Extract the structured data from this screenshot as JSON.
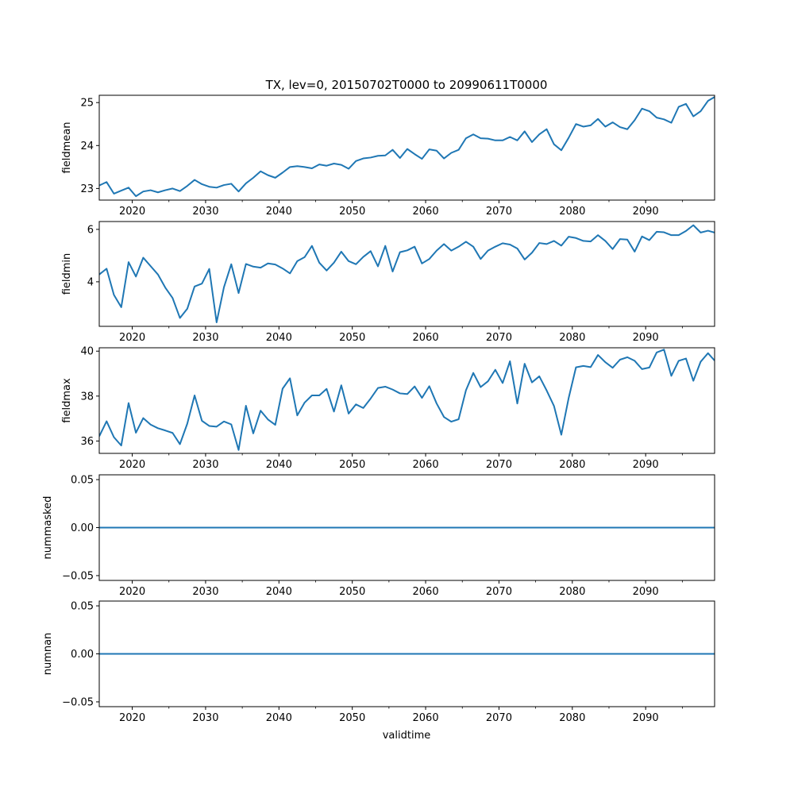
{
  "chart_data": {
    "type": "line",
    "title": "TX, lev=0, 20150702T0000 to 20990611T0000",
    "xlabel": "validtime",
    "color": "#1f77b4",
    "x_ticks": [
      "2020",
      "2030",
      "2040",
      "2050",
      "2060",
      "2070",
      "2080",
      "2090"
    ],
    "x_tick_years": [
      2020,
      2030,
      2040,
      2050,
      2060,
      2070,
      2080,
      2090
    ],
    "x_minor_years": [
      2025,
      2035,
      2045,
      2055,
      2065,
      2075,
      2085,
      2095
    ],
    "xlim": [
      2015.5,
      2099.4
    ],
    "years": [
      2015.5,
      2016.5,
      2017.5,
      2018.5,
      2019.5,
      2020.5,
      2021.5,
      2022.5,
      2023.5,
      2024.5,
      2025.5,
      2026.5,
      2027.5,
      2028.5,
      2029.5,
      2030.5,
      2031.5,
      2032.5,
      2033.5,
      2034.5,
      2035.5,
      2036.5,
      2037.5,
      2038.5,
      2039.5,
      2040.5,
      2041.5,
      2042.5,
      2043.5,
      2044.5,
      2045.5,
      2046.5,
      2047.5,
      2048.5,
      2049.5,
      2050.5,
      2051.5,
      2052.5,
      2053.5,
      2054.5,
      2055.5,
      2056.5,
      2057.5,
      2058.5,
      2059.5,
      2060.5,
      2061.5,
      2062.5,
      2063.5,
      2064.5,
      2065.5,
      2066.5,
      2067.5,
      2068.5,
      2069.5,
      2070.5,
      2071.5,
      2072.5,
      2073.5,
      2074.5,
      2075.5,
      2076.5,
      2077.5,
      2078.5,
      2079.5,
      2080.5,
      2081.5,
      2082.5,
      2083.5,
      2084.5,
      2085.5,
      2086.5,
      2087.5,
      2088.5,
      2089.5,
      2090.5,
      2091.5,
      2092.5,
      2093.5,
      2094.5,
      2095.5,
      2096.5,
      2097.5,
      2098.5,
      2099.4
    ],
    "panels": [
      {
        "ylabel": "fieldmean",
        "ylim": [
          22.73,
          25.17
        ],
        "y_ticks": [
          23,
          24,
          25
        ],
        "y_tick_labels": [
          "23",
          "24",
          "25"
        ],
        "values": [
          23.07,
          23.15,
          22.88,
          22.95,
          23.02,
          22.82,
          22.93,
          22.96,
          22.91,
          22.96,
          23.0,
          22.94,
          23.06,
          23.2,
          23.1,
          23.04,
          23.02,
          23.08,
          23.11,
          22.93,
          23.12,
          23.25,
          23.4,
          23.31,
          23.25,
          23.37,
          23.5,
          23.52,
          23.5,
          23.47,
          23.56,
          23.53,
          23.58,
          23.55,
          23.46,
          23.64,
          23.7,
          23.72,
          23.76,
          23.77,
          23.9,
          23.71,
          23.92,
          23.8,
          23.69,
          23.91,
          23.88,
          23.7,
          23.83,
          23.9,
          24.17,
          24.26,
          24.17,
          24.16,
          24.12,
          24.12,
          24.2,
          24.12,
          24.33,
          24.08,
          24.26,
          24.38,
          24.03,
          23.89,
          24.18,
          24.5,
          24.44,
          24.47,
          24.62,
          24.44,
          24.54,
          24.43,
          24.38,
          24.59,
          24.86,
          24.8,
          24.65,
          24.61,
          24.53,
          24.9,
          24.97,
          24.68,
          24.8,
          25.04,
          25.13
        ]
      },
      {
        "ylabel": "fieldmin",
        "ylim": [
          2.3,
          6.3
        ],
        "y_ticks": [
          4,
          6
        ],
        "y_tick_labels": [
          "4",
          "6"
        ],
        "values": [
          4.28,
          4.5,
          3.5,
          3.03,
          4.75,
          4.2,
          4.92,
          4.6,
          4.28,
          3.78,
          3.38,
          2.62,
          2.97,
          3.82,
          3.93,
          4.49,
          2.45,
          3.79,
          4.67,
          3.57,
          4.68,
          4.58,
          4.54,
          4.7,
          4.66,
          4.51,
          4.32,
          4.79,
          4.94,
          5.37,
          4.73,
          4.43,
          4.73,
          5.15,
          4.79,
          4.67,
          4.95,
          5.17,
          4.59,
          5.37,
          4.39,
          5.13,
          5.2,
          5.34,
          4.7,
          4.87,
          5.19,
          5.44,
          5.19,
          5.34,
          5.53,
          5.34,
          4.87,
          5.19,
          5.34,
          5.47,
          5.42,
          5.27,
          4.85,
          5.11,
          5.48,
          5.44,
          5.56,
          5.38,
          5.72,
          5.67,
          5.56,
          5.54,
          5.78,
          5.56,
          5.25,
          5.63,
          5.61,
          5.15,
          5.73,
          5.59,
          5.91,
          5.89,
          5.78,
          5.78,
          5.94,
          6.16,
          5.88,
          5.95,
          5.88
        ]
      },
      {
        "ylabel": "fieldmax",
        "ylim": [
          35.45,
          40.15
        ],
        "y_ticks": [
          36,
          38,
          40
        ],
        "y_tick_labels": [
          "36",
          "38",
          "40"
        ],
        "values": [
          36.21,
          36.88,
          36.17,
          35.8,
          37.69,
          36.37,
          37.02,
          36.73,
          36.57,
          36.47,
          36.36,
          35.86,
          36.77,
          38.03,
          36.9,
          36.67,
          36.64,
          36.87,
          36.74,
          35.6,
          37.57,
          36.34,
          37.35,
          36.96,
          36.72,
          38.33,
          38.79,
          37.14,
          37.71,
          38.03,
          38.03,
          38.32,
          37.31,
          38.48,
          37.22,
          37.63,
          37.47,
          37.89,
          38.36,
          38.42,
          38.29,
          38.12,
          38.09,
          38.43,
          37.92,
          38.44,
          37.67,
          37.07,
          36.86,
          36.97,
          38.26,
          39.03,
          38.4,
          38.66,
          39.17,
          38.58,
          39.55,
          37.67,
          39.44,
          38.61,
          38.88,
          38.25,
          37.56,
          36.28,
          37.91,
          39.28,
          39.34,
          39.29,
          39.83,
          39.51,
          39.26,
          39.62,
          39.73,
          39.57,
          39.2,
          39.27,
          39.94,
          40.07,
          38.9,
          39.57,
          39.67,
          38.68,
          39.53,
          39.91,
          39.58
        ]
      },
      {
        "ylabel": "nummasked",
        "ylim": [
          -0.055,
          0.055
        ],
        "y_ticks": [
          -0.05,
          0.0,
          0.05
        ],
        "y_tick_labels": [
          "−0.05",
          "0.00",
          "0.05"
        ],
        "constant": 0
      },
      {
        "ylabel": "numnan",
        "ylim": [
          -0.055,
          0.055
        ],
        "y_ticks": [
          -0.05,
          0.0,
          0.05
        ],
        "y_tick_labels": [
          "−0.05",
          "0.00",
          "0.05"
        ],
        "constant": 0
      }
    ]
  }
}
